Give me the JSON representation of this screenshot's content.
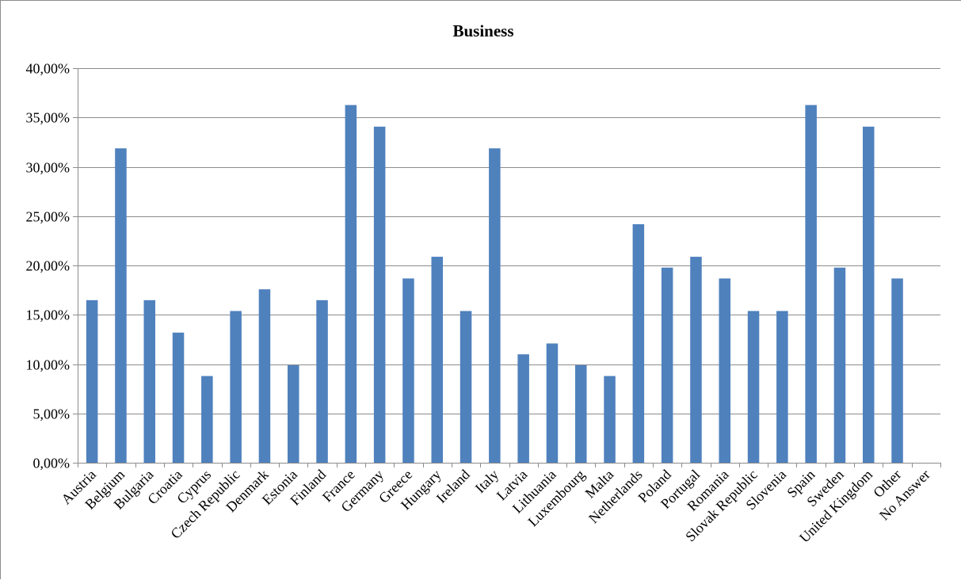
{
  "chart_data": {
    "type": "bar",
    "title": "Business",
    "xlabel": "",
    "ylabel": "",
    "ylim": [
      0,
      40
    ],
    "y_tick_labels": [
      "0,00%",
      "5,00%",
      "10,00%",
      "15,00%",
      "20,00%",
      "25,00%",
      "30,00%",
      "35,00%",
      "40,00%"
    ],
    "y_ticks": [
      0,
      5,
      10,
      15,
      20,
      25,
      30,
      35,
      40
    ],
    "grid": true,
    "legend": "none",
    "bar_color": "#4f81bd",
    "categories": [
      "Austria",
      "Belgium",
      "Bulgaria",
      "Croatia",
      "Cyprus",
      "Czech Republic",
      "Denmark",
      "Estonia",
      "Finland",
      "France",
      "Germany",
      "Greece",
      "Hungary",
      "Ireland",
      "Italy",
      "Latvia",
      "Lithuania",
      "Luxembourg",
      "Malta",
      "Netherlands",
      "Poland",
      "Portugal",
      "Romania",
      "Slovak Republic",
      "Slovenia",
      "Spain",
      "Sweden",
      "United Kingdom",
      "Other",
      "No Answer"
    ],
    "values": [
      16.48,
      31.87,
      16.48,
      13.19,
      8.79,
      15.38,
      17.58,
      9.89,
      16.48,
      36.26,
      34.07,
      18.68,
      20.88,
      15.38,
      31.87,
      10.99,
      12.09,
      9.89,
      8.79,
      24.18,
      19.78,
      20.88,
      18.68,
      15.38,
      15.38,
      36.26,
      19.78,
      34.07,
      18.68,
      0
    ]
  }
}
